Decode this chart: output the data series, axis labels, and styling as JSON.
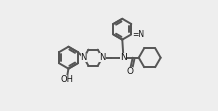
{
  "bg_color": "#eeeeee",
  "line_color": "#555555",
  "line_width": 1.4,
  "text_color": "#111111",
  "figsize": [
    2.18,
    1.11
  ],
  "dpi": 100,
  "xlim": [
    0.0,
    1.0
  ],
  "ylim": [
    0.0,
    1.0
  ]
}
